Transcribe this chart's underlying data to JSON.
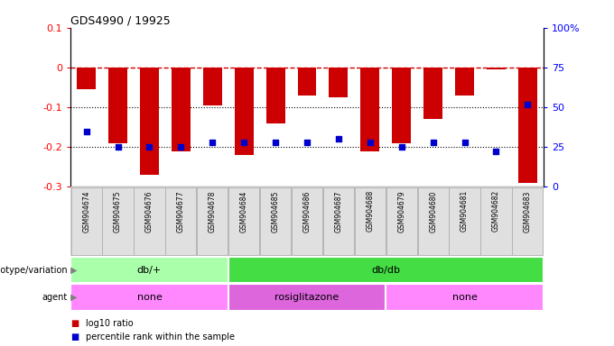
{
  "title": "GDS4990 / 19925",
  "samples": [
    "GSM904674",
    "GSM904675",
    "GSM904676",
    "GSM904677",
    "GSM904678",
    "GSM904684",
    "GSM904685",
    "GSM904686",
    "GSM904687",
    "GSM904688",
    "GSM904679",
    "GSM904680",
    "GSM904681",
    "GSM904682",
    "GSM904683"
  ],
  "log10_ratio": [
    -0.055,
    -0.19,
    -0.27,
    -0.21,
    -0.095,
    -0.22,
    -0.14,
    -0.07,
    -0.075,
    -0.21,
    -0.19,
    -0.13,
    -0.07,
    -0.005,
    -0.29
  ],
  "percentile_vals": [
    35,
    25,
    25,
    25,
    28,
    28,
    28,
    28,
    30,
    28,
    25,
    28,
    28,
    22,
    52
  ],
  "genotype_groups": [
    {
      "label": "db/+",
      "start": 0,
      "end": 5,
      "color": "#aaffaa"
    },
    {
      "label": "db/db",
      "start": 5,
      "end": 15,
      "color": "#44dd44"
    }
  ],
  "agent_groups": [
    {
      "label": "none",
      "start": 0,
      "end": 5,
      "color": "#ff88ff"
    },
    {
      "label": "rosiglitazone",
      "start": 5,
      "end": 10,
      "color": "#dd66dd"
    },
    {
      "label": "none",
      "start": 10,
      "end": 15,
      "color": "#ff88ff"
    }
  ],
  "bar_color": "#cc0000",
  "dot_color": "#0000cc",
  "dashed_line_color": "#cc0000",
  "background_color": "#ffffff",
  "ylim_left": [
    -0.3,
    0.1
  ],
  "ylim_right": [
    0,
    100
  ],
  "yticks_left": [
    -0.3,
    -0.2,
    -0.1,
    0,
    0.1
  ],
  "yticks_right": [
    0,
    25,
    50,
    75,
    100
  ],
  "legend_items": [
    {
      "label": "log10 ratio",
      "color": "#cc0000"
    },
    {
      "label": "percentile rank within the sample",
      "color": "#0000cc"
    }
  ]
}
